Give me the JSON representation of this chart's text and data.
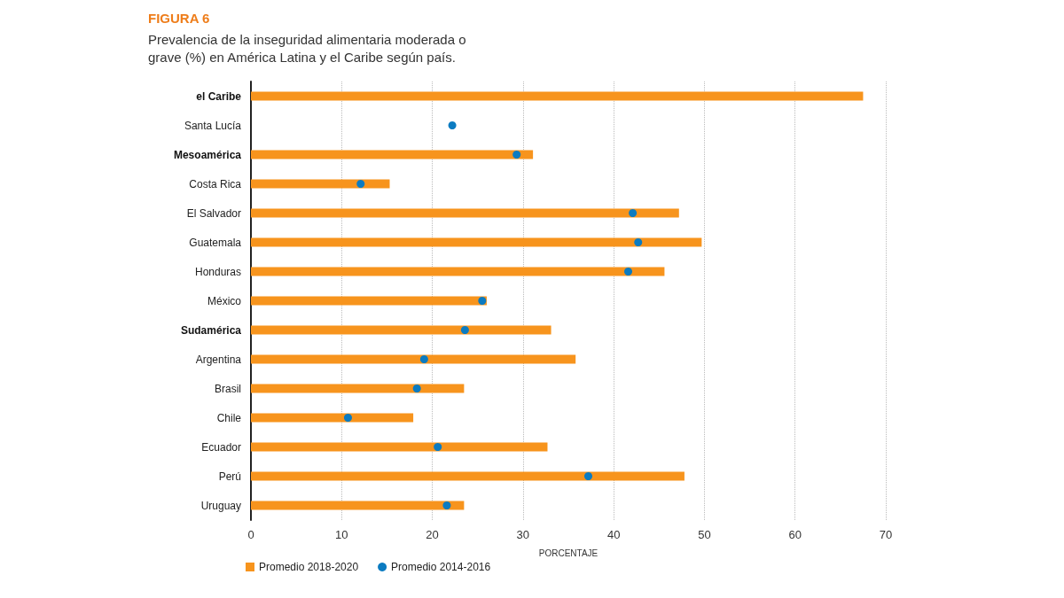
{
  "chart_data": {
    "type": "bar",
    "orientation": "horizontal",
    "title": "FIGURA 6",
    "subtitle": "Prevalencia de la inseguridad alimentaria moderada o grave (%) en América Latina y el Caribe según país.",
    "xlabel": "PORCENTAJE",
    "categories": [
      "el Caribe",
      "Santa Lucía",
      "Mesoamérica",
      "Costa Rica",
      "El Salvador",
      "Guatemala",
      "Honduras",
      "México",
      "Sudamérica",
      "Argentina",
      "Brasil",
      "Chile",
      "Ecuador",
      "Perú",
      "Uruguay"
    ],
    "series": [
      {
        "name": "Promedio 2018-2020",
        "color": "#f7941d",
        "values": [
          67.5,
          null,
          31.1,
          15.3,
          47.2,
          49.7,
          45.6,
          26.0,
          33.1,
          35.8,
          23.5,
          17.9,
          32.7,
          47.8,
          23.5
        ]
      },
      {
        "name": "Promedio 2014-2016",
        "type": "scatter",
        "color": "#0b7bc1",
        "values": [
          null,
          22.2,
          29.3,
          12.1,
          42.1,
          42.7,
          41.6,
          25.5,
          23.6,
          19.1,
          18.3,
          10.7,
          20.6,
          37.2,
          21.6
        ]
      }
    ],
    "xlim": [
      0,
      70
    ],
    "xticks": [
      0,
      10,
      20,
      30,
      40,
      50,
      60,
      70
    ],
    "grid": "x",
    "legend": "bottom left",
    "marker": "circle"
  }
}
